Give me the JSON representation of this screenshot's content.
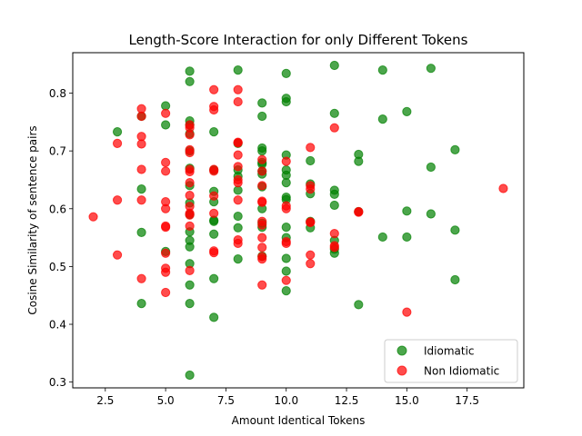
{
  "chart_data": {
    "type": "scatter",
    "title": "Length-Score Interaction for only Different Tokens",
    "xlabel": "Amount Identical Tokens",
    "ylabel": "Cosine Similarity of sentence pairs",
    "xlim": [
      1.15,
      19.85
    ],
    "ylim": [
      0.29,
      0.87
    ],
    "xticks": [
      2.5,
      5.0,
      7.5,
      10.0,
      12.5,
      15.0,
      17.5
    ],
    "xtick_labels": [
      "2.5",
      "5.0",
      "7.5",
      "10.0",
      "12.5",
      "15.0",
      "17.5"
    ],
    "yticks": [
      0.3,
      0.4,
      0.5,
      0.6,
      0.7,
      0.8
    ],
    "ytick_labels": [
      "0.3",
      "0.4",
      "0.5",
      "0.6",
      "0.7",
      "0.8"
    ],
    "grid": false,
    "legend_position": "lower-right",
    "marker_alpha": 0.7,
    "series": [
      {
        "name": "Idiomatic",
        "color": "#008000",
        "points": [
          [
            3,
            0.733
          ],
          [
            4,
            0.76
          ],
          [
            4,
            0.634
          ],
          [
            4,
            0.559
          ],
          [
            4,
            0.436
          ],
          [
            5,
            0.778
          ],
          [
            5,
            0.745
          ],
          [
            5,
            0.526
          ],
          [
            6,
            0.838
          ],
          [
            6,
            0.82
          ],
          [
            6,
            0.752
          ],
          [
            6,
            0.745
          ],
          [
            6,
            0.73
          ],
          [
            6,
            0.7
          ],
          [
            6,
            0.67
          ],
          [
            6,
            0.64
          ],
          [
            6,
            0.61
          ],
          [
            6,
            0.59
          ],
          [
            6,
            0.56
          ],
          [
            6,
            0.545
          ],
          [
            6,
            0.534
          ],
          [
            6,
            0.505
          ],
          [
            6,
            0.468
          ],
          [
            6,
            0.436
          ],
          [
            6,
            0.312
          ],
          [
            7,
            0.733
          ],
          [
            7,
            0.667
          ],
          [
            7,
            0.63
          ],
          [
            7,
            0.612
          ],
          [
            7,
            0.58
          ],
          [
            7,
            0.578
          ],
          [
            7,
            0.556
          ],
          [
            7,
            0.479
          ],
          [
            7,
            0.412
          ],
          [
            8,
            0.84
          ],
          [
            8,
            0.713
          ],
          [
            8,
            0.667
          ],
          [
            8,
            0.656
          ],
          [
            8,
            0.632
          ],
          [
            8,
            0.587
          ],
          [
            8,
            0.567
          ],
          [
            8,
            0.513
          ],
          [
            9,
            0.783
          ],
          [
            9,
            0.76
          ],
          [
            9,
            0.705
          ],
          [
            9,
            0.7
          ],
          [
            9,
            0.68
          ],
          [
            9,
            0.677
          ],
          [
            9,
            0.665
          ],
          [
            9,
            0.66
          ],
          [
            9,
            0.638
          ],
          [
            9,
            0.6
          ],
          [
            9,
            0.575
          ],
          [
            9,
            0.568
          ],
          [
            9,
            0.518
          ],
          [
            10,
            0.834
          ],
          [
            10,
            0.791
          ],
          [
            10,
            0.785
          ],
          [
            10,
            0.693
          ],
          [
            10,
            0.667
          ],
          [
            10,
            0.658
          ],
          [
            10,
            0.645
          ],
          [
            10,
            0.62
          ],
          [
            10,
            0.616
          ],
          [
            10,
            0.568
          ],
          [
            10,
            0.55
          ],
          [
            10,
            0.514
          ],
          [
            10,
            0.492
          ],
          [
            10,
            0.458
          ],
          [
            11,
            0.683
          ],
          [
            11,
            0.643
          ],
          [
            11,
            0.626
          ],
          [
            11,
            0.578
          ],
          [
            11,
            0.567
          ],
          [
            12,
            0.848
          ],
          [
            12,
            0.765
          ],
          [
            12,
            0.632
          ],
          [
            12,
            0.625
          ],
          [
            12,
            0.606
          ],
          [
            12,
            0.545
          ],
          [
            12,
            0.53
          ],
          [
            12,
            0.523
          ],
          [
            13,
            0.694
          ],
          [
            13,
            0.682
          ],
          [
            13,
            0.595
          ],
          [
            13,
            0.434
          ],
          [
            14,
            0.84
          ],
          [
            14,
            0.755
          ],
          [
            14,
            0.551
          ],
          [
            15,
            0.768
          ],
          [
            15,
            0.596
          ],
          [
            15,
            0.551
          ],
          [
            16,
            0.843
          ],
          [
            16,
            0.672
          ],
          [
            16,
            0.591
          ],
          [
            17,
            0.702
          ],
          [
            17,
            0.563
          ],
          [
            17,
            0.477
          ]
        ]
      },
      {
        "name": "Non Idiomatic",
        "color": "#ff0000",
        "points": [
          [
            2,
            0.586
          ],
          [
            3,
            0.713
          ],
          [
            3,
            0.615
          ],
          [
            3,
            0.52
          ],
          [
            4,
            0.773
          ],
          [
            4,
            0.76
          ],
          [
            4,
            0.725
          ],
          [
            4,
            0.712
          ],
          [
            4,
            0.668
          ],
          [
            4,
            0.615
          ],
          [
            4,
            0.479
          ],
          [
            5,
            0.765
          ],
          [
            5,
            0.68
          ],
          [
            5,
            0.665
          ],
          [
            5,
            0.612
          ],
          [
            5,
            0.6
          ],
          [
            5,
            0.57
          ],
          [
            5,
            0.568
          ],
          [
            5,
            0.523
          ],
          [
            5,
            0.497
          ],
          [
            5,
            0.49
          ],
          [
            5,
            0.455
          ],
          [
            6,
            0.745
          ],
          [
            6,
            0.74
          ],
          [
            6,
            0.728
          ],
          [
            6,
            0.702
          ],
          [
            6,
            0.697
          ],
          [
            6,
            0.668
          ],
          [
            6,
            0.664
          ],
          [
            6,
            0.645
          ],
          [
            6,
            0.623
          ],
          [
            6,
            0.604
          ],
          [
            6,
            0.592
          ],
          [
            6,
            0.589
          ],
          [
            6,
            0.57
          ],
          [
            6,
            0.493
          ],
          [
            7,
            0.806
          ],
          [
            7,
            0.777
          ],
          [
            7,
            0.771
          ],
          [
            7,
            0.668
          ],
          [
            7,
            0.665
          ],
          [
            7,
            0.622
          ],
          [
            7,
            0.592
          ],
          [
            7,
            0.527
          ],
          [
            7,
            0.524
          ],
          [
            8,
            0.806
          ],
          [
            8,
            0.785
          ],
          [
            8,
            0.715
          ],
          [
            8,
            0.714
          ],
          [
            8,
            0.693
          ],
          [
            8,
            0.673
          ],
          [
            8,
            0.65
          ],
          [
            8,
            0.645
          ],
          [
            8,
            0.615
          ],
          [
            8,
            0.546
          ],
          [
            8,
            0.54
          ],
          [
            9,
            0.685
          ],
          [
            9,
            0.665
          ],
          [
            9,
            0.64
          ],
          [
            9,
            0.613
          ],
          [
            9,
            0.611
          ],
          [
            9,
            0.578
          ],
          [
            9,
            0.572
          ],
          [
            9,
            0.55
          ],
          [
            9,
            0.533
          ],
          [
            9,
            0.517
          ],
          [
            9,
            0.513
          ],
          [
            9,
            0.468
          ],
          [
            10,
            0.682
          ],
          [
            10,
            0.605
          ],
          [
            10,
            0.6
          ],
          [
            10,
            0.543
          ],
          [
            10,
            0.54
          ],
          [
            10,
            0.476
          ],
          [
            11,
            0.706
          ],
          [
            11,
            0.64
          ],
          [
            11,
            0.634
          ],
          [
            11,
            0.576
          ],
          [
            11,
            0.577
          ],
          [
            11,
            0.52
          ],
          [
            11,
            0.505
          ],
          [
            12,
            0.74
          ],
          [
            12,
            0.557
          ],
          [
            12,
            0.536
          ],
          [
            12,
            0.533
          ],
          [
            13,
            0.595
          ],
          [
            13,
            0.594
          ],
          [
            15,
            0.421
          ],
          [
            19,
            0.635
          ]
        ]
      }
    ]
  }
}
